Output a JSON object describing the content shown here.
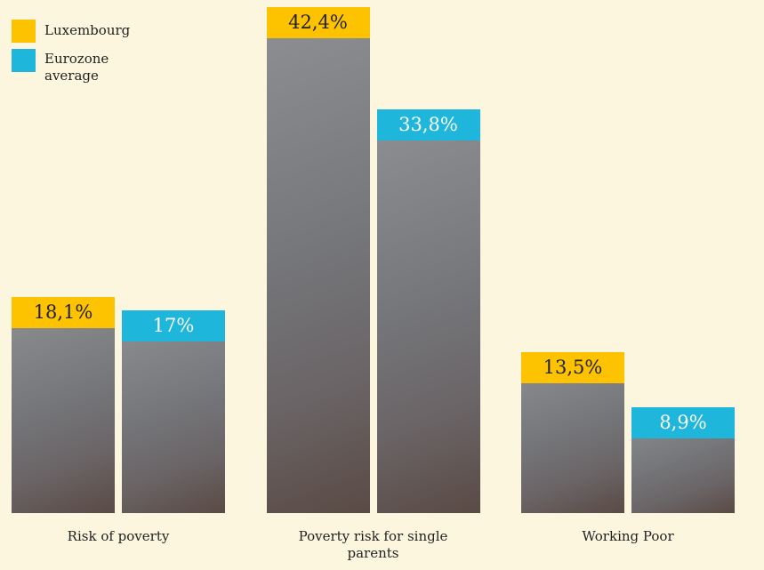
{
  "chart_data": {
    "type": "bar",
    "categories": [
      "Risk of poverty",
      "Poverty risk for single parents",
      "Working Poor"
    ],
    "series": [
      {
        "name": "Luxembourg",
        "color": "#fdc300",
        "values": [
          18.1,
          42.4,
          13.5
        ],
        "value_labels": [
          "18,1%",
          "42,4%",
          "13,5%"
        ]
      },
      {
        "name": "Eurozone average",
        "color": "#1fb6dc",
        "values": [
          17,
          33.8,
          8.9
        ],
        "value_labels": [
          "17%",
          "33,8%",
          "8,9%"
        ]
      }
    ],
    "legend": "top-left"
  }
}
